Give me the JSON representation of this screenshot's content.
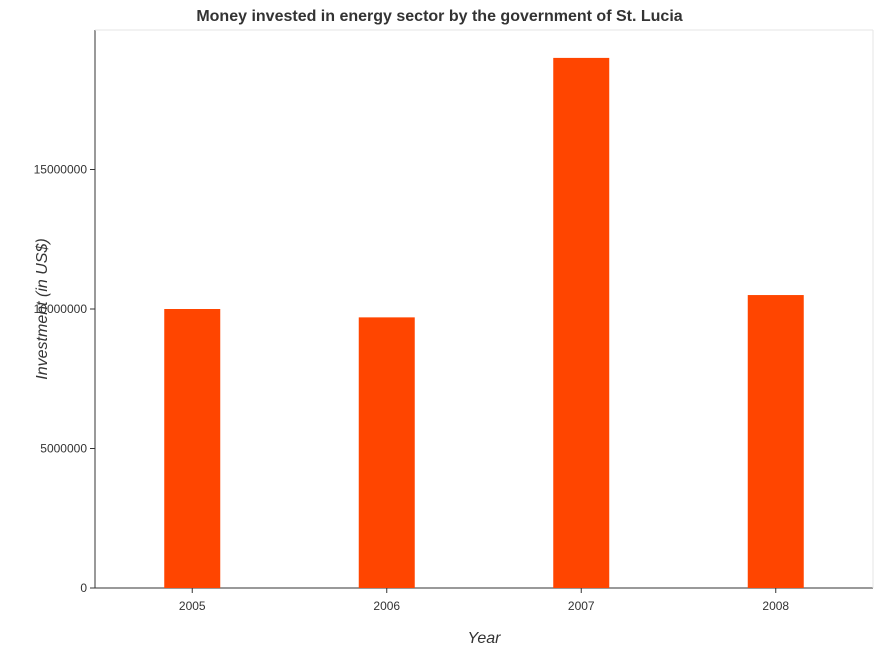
{
  "chart_data": {
    "type": "bar",
    "title": "Money invested in energy sector by the government of St. Lucia",
    "xlabel": "Year",
    "ylabel": "Investment (in US$)",
    "categories": [
      "2005",
      "2006",
      "2007",
      "2008"
    ],
    "values": [
      10000000,
      9700000,
      19000000,
      10500000
    ],
    "ylim": [
      0,
      20000000
    ],
    "yticks": [
      0,
      5000000,
      10000000,
      15000000
    ],
    "ytick_labels": [
      "0",
      "5000000",
      "10000000",
      "15000000"
    ],
    "bar_color": "#ff4500",
    "grid": false,
    "legend": "none"
  }
}
